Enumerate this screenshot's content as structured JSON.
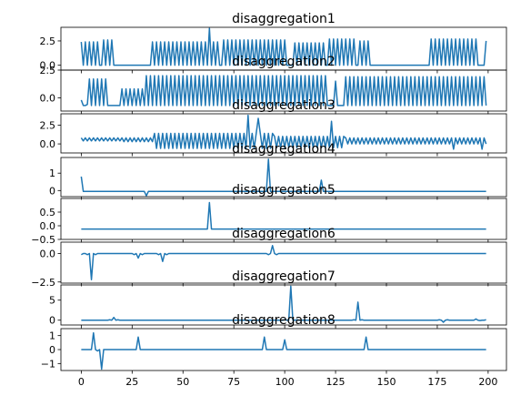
{
  "chart_data": {
    "type": "line",
    "line_color": "#1f77b4",
    "background_color": "#ffffff",
    "x_range": [
      0,
      199
    ],
    "xlim": [
      -10,
      209
    ],
    "x_ticks": [
      0,
      25,
      50,
      75,
      100,
      125,
      150,
      175,
      200
    ],
    "x_tick_labels_on_last_panel_only": true,
    "grid": false,
    "legend": "none",
    "panels": [
      {
        "title": "disaggregation1",
        "ylim": [
          -0.5,
          3.9
        ],
        "y_ticks": [
          0.0,
          2.5
        ],
        "y_tick_labels": [
          "0.0",
          "2.5"
        ],
        "spikes": [
          {
            "start": 0,
            "end": 8,
            "period": 2,
            "amp": 2.4,
            "base": 0
          },
          {
            "start": 11,
            "end": 15,
            "period": 2,
            "amp": 2.6,
            "base": 0
          },
          {
            "start": 35,
            "end": 68,
            "period": 2,
            "amp": 2.4,
            "base": 0
          },
          {
            "start": 70,
            "end": 100,
            "period": 2,
            "amp": 2.6,
            "base": 0
          },
          {
            "start": 105,
            "end": 120,
            "period": 2,
            "amp": 2.3,
            "base": 0
          },
          {
            "start": 122,
            "end": 134,
            "period": 2,
            "amp": 2.7,
            "base": 0
          },
          {
            "start": 137,
            "end": 142,
            "period": 2,
            "amp": 2.5,
            "base": 0
          },
          {
            "start": 172,
            "end": 195,
            "period": 2,
            "amp": 2.7,
            "base": 0
          }
        ],
        "points": [
          [
            63,
            3.8
          ],
          [
            199,
            2.5
          ]
        ]
      },
      {
        "title": "disaggregation2",
        "ylim": [
          -1.2,
          2.5
        ],
        "y_ticks": [
          0.0,
          2.5
        ],
        "y_tick_labels": [
          "0.0",
          "2.5"
        ],
        "baseline": -0.7,
        "spikes": [
          {
            "start": 4,
            "end": 12,
            "period": 2,
            "amp": 2.4,
            "base": -0.7
          },
          {
            "start": 20,
            "end": 30,
            "period": 2,
            "amp": 1.5,
            "base": -0.7
          },
          {
            "start": 32,
            "end": 120,
            "period": 2,
            "amp": 2.7,
            "base": -0.7
          },
          {
            "start": 130,
            "end": 199,
            "period": 2,
            "amp": 2.6,
            "base": -0.7
          }
        ],
        "points": [
          [
            0,
            -0.2
          ],
          [
            3,
            -0.6
          ],
          [
            125,
            1.5
          ]
        ]
      },
      {
        "title": "disaggregation3",
        "ylim": [
          -1.2,
          4.0
        ],
        "y_ticks": [
          0.0,
          2.5
        ],
        "y_tick_labels": [
          "0.0",
          "2.5"
        ],
        "baseline": 0.5,
        "spikes": [
          {
            "start": 0,
            "end": 20,
            "period": 2,
            "amp": 0.4,
            "base": 0.4
          },
          {
            "start": 20,
            "end": 36,
            "period": 2,
            "amp": 0.5,
            "base": 0.3
          },
          {
            "start": 36,
            "end": 95,
            "period": 2,
            "amp": 2.0,
            "base": -0.6
          },
          {
            "start": 95,
            "end": 130,
            "period": 2,
            "amp": 1.5,
            "base": -0.5
          },
          {
            "start": 130,
            "end": 199,
            "period": 2,
            "amp": 0.8,
            "base": 0
          }
        ],
        "points": [
          [
            82,
            3.8
          ],
          [
            87,
            3.4
          ],
          [
            123,
            3.0
          ],
          [
            183,
            -0.7
          ],
          [
            197,
            -0.7
          ]
        ]
      },
      {
        "title": "disaggregation4",
        "ylim": [
          -0.35,
          1.9
        ],
        "y_ticks": [
          0,
          1
        ],
        "y_tick_labels": [
          "0",
          "1"
        ],
        "baseline": -0.05,
        "spikes": [],
        "points": [
          [
            0,
            0.8
          ],
          [
            2,
            -0.05
          ],
          [
            30,
            -0.05
          ],
          [
            32,
            -0.3
          ],
          [
            34,
            -0.05
          ],
          [
            90,
            -0.05
          ],
          [
            92,
            1.8
          ],
          [
            94,
            -0.05
          ],
          [
            116,
            -0.05
          ],
          [
            118,
            0.6
          ],
          [
            120,
            -0.05
          ]
        ]
      },
      {
        "title": "disaggregation5",
        "ylim": [
          -0.5,
          1.0
        ],
        "y_ticks": [
          -0.5,
          0.0,
          0.5
        ],
        "y_tick_labels": [
          "−0.5",
          "0.0",
          "0.5"
        ],
        "baseline": -0.12,
        "spikes": [],
        "points": [
          [
            61,
            -0.12
          ],
          [
            63,
            0.85
          ],
          [
            65,
            -0.12
          ]
        ]
      },
      {
        "title": "disaggregation6",
        "ylim": [
          -2.6,
          1.0
        ],
        "y_ticks": [
          -2.5,
          0.0
        ],
        "y_tick_labels": [
          "−2.5",
          "0.0"
        ],
        "baseline": 0,
        "spikes": [],
        "points": [
          [
            0,
            -0.1
          ],
          [
            3,
            -0.1
          ],
          [
            5,
            -2.3
          ],
          [
            7,
            -0.1
          ],
          [
            26,
            -0.1
          ],
          [
            28,
            -0.4
          ],
          [
            30,
            -0.1
          ],
          [
            38,
            -0.1
          ],
          [
            40,
            -0.7
          ],
          [
            42,
            -0.1
          ],
          [
            92,
            -0.1
          ],
          [
            94,
            0.7
          ],
          [
            96,
            -0.1
          ]
        ]
      },
      {
        "title": "disaggregation7",
        "ylim": [
          -1.2,
          8.8
        ],
        "y_ticks": [
          0,
          5
        ],
        "y_tick_labels": [
          "0",
          "5"
        ],
        "baseline": 0,
        "spikes": [],
        "points": [
          [
            14,
            0.1
          ],
          [
            16,
            0.7
          ],
          [
            18,
            0.1
          ],
          [
            100,
            0.1
          ],
          [
            103,
            8.5
          ],
          [
            106,
            0.1
          ],
          [
            134,
            0.1
          ],
          [
            136,
            4.5
          ],
          [
            138,
            0.1
          ],
          [
            176,
            0.1
          ],
          [
            178,
            -0.5
          ],
          [
            180,
            0.1
          ],
          [
            194,
            0.3
          ],
          [
            196,
            -0.1
          ],
          [
            199,
            0.1
          ]
        ]
      },
      {
        "title": "disaggregation8",
        "ylim": [
          -1.5,
          1.5
        ],
        "y_ticks": [
          -1,
          0,
          1
        ],
        "y_tick_labels": [
          "−1",
          "0",
          "1"
        ],
        "baseline": 0,
        "spikes": [],
        "points": [
          [
            0,
            0
          ],
          [
            4,
            0
          ],
          [
            6,
            1.2
          ],
          [
            8,
            -0.1
          ],
          [
            10,
            -1.4
          ],
          [
            12,
            0
          ],
          [
            26,
            0
          ],
          [
            28,
            0.9
          ],
          [
            30,
            0
          ],
          [
            88,
            0
          ],
          [
            90,
            0.9
          ],
          [
            92,
            0
          ],
          [
            98,
            0
          ],
          [
            100,
            0.7
          ],
          [
            102,
            0
          ],
          [
            138,
            0
          ],
          [
            140,
            0.9
          ],
          [
            142,
            0
          ],
          [
            199,
            0
          ]
        ]
      }
    ]
  }
}
